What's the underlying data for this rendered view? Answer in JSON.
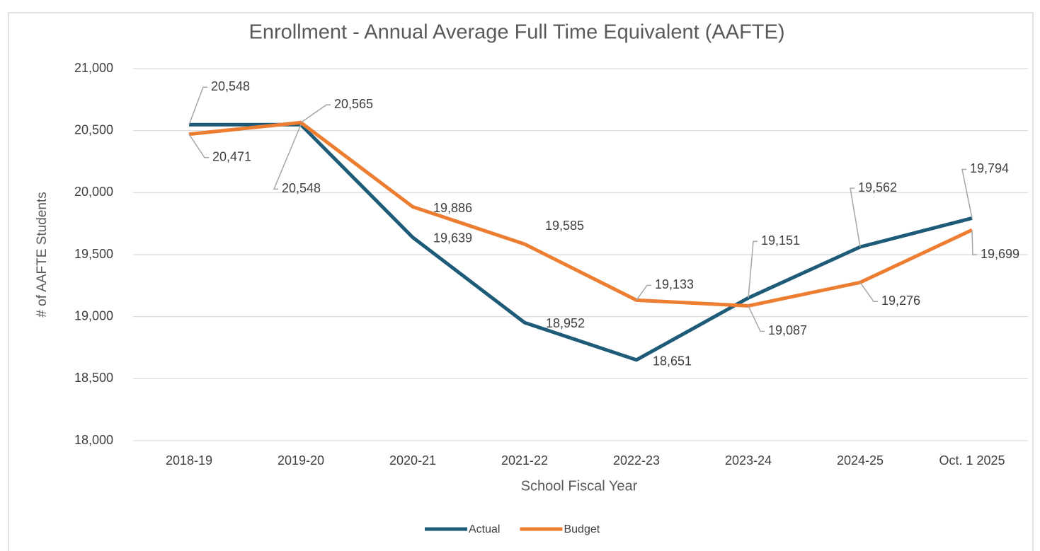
{
  "chart_data": {
    "type": "line",
    "title": "Enrollment - Annual Average Full Time Equivalent (AAFTE)",
    "x_label": "School Fiscal Year",
    "y_label": "# of AAFTE Students",
    "categories": [
      "2018-19",
      "2019-20",
      "2020-21",
      "2021-22",
      "2022-23",
      "2023-24",
      "2024-25",
      "Oct. 1 2025"
    ],
    "series": [
      {
        "name": "Actual",
        "color": "#1d5b79",
        "values": [
          20548,
          20548,
          19639,
          18952,
          18651,
          19151,
          19562,
          19794
        ],
        "value_labels": [
          "20,548",
          "20,548",
          "19,639",
          "18,952",
          "18,651",
          "19,151",
          "19,562",
          "19,794"
        ]
      },
      {
        "name": "Budget",
        "color": "#ed7d31",
        "values": [
          20471,
          20565,
          19886,
          19585,
          19133,
          19087,
          19276,
          19699
        ],
        "value_labels": [
          "20,471",
          "20,565",
          "19,886",
          "19,585",
          "19,133",
          "19,087",
          "19,276",
          "19,699"
        ]
      }
    ],
    "ylim": [
      18000,
      21000
    ],
    "yticks": [
      {
        "value": 18000,
        "label": "18,000"
      },
      {
        "value": 18500,
        "label": "18,500"
      },
      {
        "value": 19000,
        "label": "19,000"
      },
      {
        "value": 19500,
        "label": "19,500"
      },
      {
        "value": 20000,
        "label": "20,000"
      },
      {
        "value": 20500,
        "label": "20,500"
      },
      {
        "value": 21000,
        "label": "21,000"
      }
    ],
    "grid": true,
    "legend": "bottom"
  }
}
